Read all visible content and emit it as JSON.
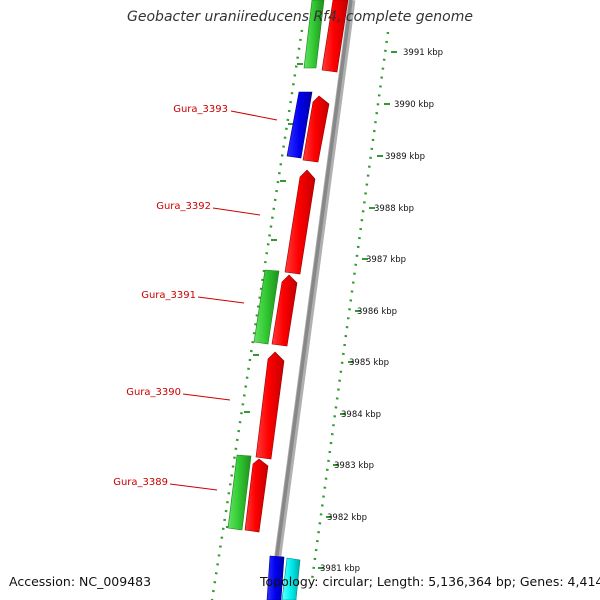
{
  "title": "Geobacter uraniireducens Rf4, complete genome",
  "accession": "Accession: NC_009483",
  "summary": "Topology: circular; Length: 5,136,364 bp; Genes: 4,414",
  "colors": {
    "forward": "#ff0000",
    "reverse": "#33cc33",
    "blue": "#0000ee",
    "cyan": "#00eeee",
    "backbone": "#999999",
    "ticks": "#339933",
    "label": "#cc0000"
  },
  "scale_labels": [
    "3991 kbp",
    "3990 kbp",
    "3989 kbp",
    "3988 kbp",
    "3987 kbp",
    "3986 kbp",
    "3985 kbp",
    "3984 kbp",
    "3983 kbp",
    "3982 kbp",
    "3981 kbp"
  ],
  "gene_labels": [
    "Gura_3393",
    "Gura_3392",
    "Gura_3391",
    "Gura_3390",
    "Gura_3389"
  ]
}
